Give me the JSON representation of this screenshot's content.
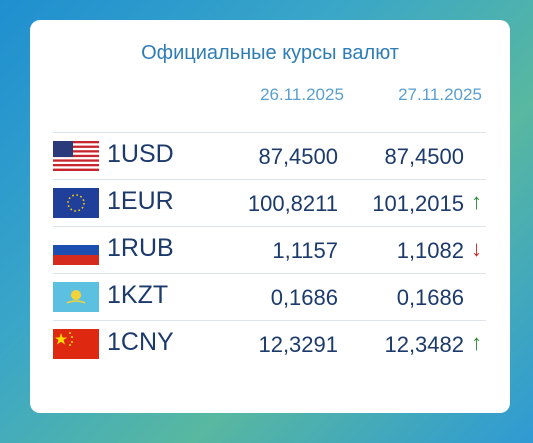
{
  "header": {
    "title": "Официальные курсы валют",
    "dates": [
      "26.11.2025",
      "27.11.2025"
    ]
  },
  "table": {
    "rows": [
      {
        "currency": "1USD",
        "rate1": "87,4500",
        "rate2": "87,4500"
      },
      {
        "currency": "1EUR",
        "rate1": "100,8211",
        "rate2": "101,2015",
        "trend": {
          "symbol": "↑",
          "color": "#2e8b3a"
        }
      },
      {
        "currency": "1RUB",
        "rate1": "1,1157",
        "rate2": "1,1082",
        "trend": {
          "symbol": "↓",
          "color": "#c62828"
        }
      },
      {
        "currency": "1KZT",
        "rate1": "0,1686",
        "rate2": "0,1686"
      },
      {
        "currency": "1CNY",
        "rate1": "12,3291",
        "rate2": "12,3482",
        "trend": {
          "symbol": "↑",
          "color": "#2e8b3a"
        }
      }
    ]
  }
}
